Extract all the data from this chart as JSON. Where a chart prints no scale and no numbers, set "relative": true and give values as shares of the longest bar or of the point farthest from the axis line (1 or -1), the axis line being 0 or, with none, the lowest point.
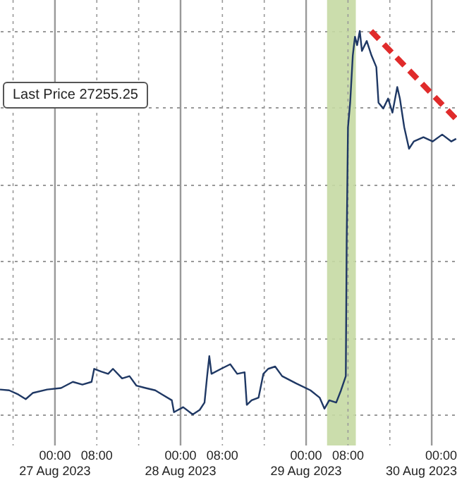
{
  "chart_data": {
    "type": "line",
    "relative": true,
    "grid": true,
    "annotations": [
      "Last Price 27255.25"
    ],
    "xlim": [
      "2023-08-26T13:30",
      "2023-08-30T04:50"
    ],
    "xticks": [
      {
        "value": "2023-08-26T16:00",
        "label": null
      },
      {
        "value": "2023-08-27T00:00",
        "label": "00:00\n27 Aug 2023"
      },
      {
        "value": "2023-08-27T08:00",
        "label": "08:00"
      },
      {
        "value": "2023-08-27T16:00",
        "label": null
      },
      {
        "value": "2023-08-28T00:00",
        "label": "00:00\n28 Aug 2023"
      },
      {
        "value": "2023-08-28T08:00",
        "label": "08:00"
      },
      {
        "value": "2023-08-28T16:00",
        "label": null
      },
      {
        "value": "2023-08-29T00:00",
        "label": "00:00\n29 Aug 2023"
      },
      {
        "value": "2023-08-29T08:00",
        "label": "08:00"
      },
      {
        "value": "2023-08-29T16:00",
        "label": null
      },
      {
        "value": "2023-08-30T00:00",
        "label": "00:00\n30 Aug 2023"
      }
    ],
    "bands": [
      {
        "axis": "x",
        "from": "2023-08-29T04:00",
        "to": "2023-08-29T09:30",
        "color": "#c5d9a3"
      }
    ],
    "series": [
      {
        "type": "line",
        "color": "#1f3864",
        "x": [
          "2023-08-26T13:30",
          "2023-08-26T15:15",
          "2023-08-26T17:00",
          "2023-08-26T18:25",
          "2023-08-26T19:45",
          "2023-08-26T22:30",
          "2023-08-27T01:10",
          "2023-08-27T03:25",
          "2023-08-27T05:15",
          "2023-08-27T07:00",
          "2023-08-27T07:30",
          "2023-08-27T08:50",
          "2023-08-27T10:10",
          "2023-08-27T11:05",
          "2023-08-27T12:50",
          "2023-08-27T14:15",
          "2023-08-27T15:35",
          "2023-08-27T17:20",
          "2023-08-27T19:10",
          "2023-08-27T20:30",
          "2023-08-27T22:20",
          "2023-08-27T22:45",
          "2023-08-28T00:30",
          "2023-08-28T02:20",
          "2023-08-28T03:40",
          "2023-08-28T04:35",
          "2023-08-28T05:05",
          "2023-08-28T05:30",
          "2023-08-28T05:55",
          "2023-08-28T07:45",
          "2023-08-28T09:30",
          "2023-08-28T10:50",
          "2023-08-28T12:15",
          "2023-08-28T12:40",
          "2023-08-28T13:35",
          "2023-08-28T14:55",
          "2023-08-28T15:50",
          "2023-08-28T16:45",
          "2023-08-28T18:05",
          "2023-08-28T19:25",
          "2023-08-28T22:05",
          "2023-08-29T00:50",
          "2023-08-29T02:35",
          "2023-08-29T03:30",
          "2023-08-29T04:25",
          "2023-08-29T05:45",
          "2023-08-29T06:40",
          "2023-08-29T07:35",
          "2023-08-29T07:45",
          "2023-08-29T08:00",
          "2023-08-29T08:25",
          "2023-08-29T08:55",
          "2023-08-29T09:20",
          "2023-08-29T09:45",
          "2023-08-29T10:15",
          "2023-08-29T10:40",
          "2023-08-29T11:35",
          "2023-08-29T12:30",
          "2023-08-29T13:25",
          "2023-08-29T13:50",
          "2023-08-29T14:45",
          "2023-08-29T15:40",
          "2023-08-29T16:30",
          "2023-08-29T17:25",
          "2023-08-29T17:55",
          "2023-08-29T18:45",
          "2023-08-29T19:40",
          "2023-08-29T20:35",
          "2023-08-29T22:25",
          "2023-08-30T00:10",
          "2023-08-30T02:00",
          "2023-08-30T03:45",
          "2023-08-30T04:40"
        ],
        "values": [
          0.065,
          0.063,
          0.052,
          0.04,
          0.056,
          0.065,
          0.069,
          0.085,
          0.078,
          0.085,
          0.119,
          0.112,
          0.106,
          0.119,
          0.094,
          0.1,
          0.075,
          0.069,
          0.063,
          0.052,
          0.037,
          0.006,
          0.019,
          0,
          0.012,
          0.031,
          0.1,
          0.152,
          0.106,
          0.119,
          0.131,
          0.106,
          0.11,
          0.025,
          0.037,
          0.044,
          0.106,
          0.119,
          0.125,
          0.1,
          0.081,
          0.063,
          0.044,
          0.015,
          0.037,
          0.031,
          0.063,
          0.1,
          0.449,
          0.749,
          0.813,
          0.936,
          0.985,
          0.963,
          1.0,
          0.948,
          0.974,
          0.936,
          0.906,
          0.813,
          0.798,
          0.824,
          0.787,
          0.854,
          0.824,
          0.749,
          0.693,
          0.712,
          0.723,
          0.712,
          0.73,
          0.712,
          0.719
        ]
      },
      {
        "type": "line",
        "color": "#e02b2b",
        "line_style": "dashed",
        "x": [
          "2023-08-29T12:25",
          "2023-08-30T04:50"
        ],
        "values": [
          1.0,
          0.768
        ]
      }
    ]
  }
}
